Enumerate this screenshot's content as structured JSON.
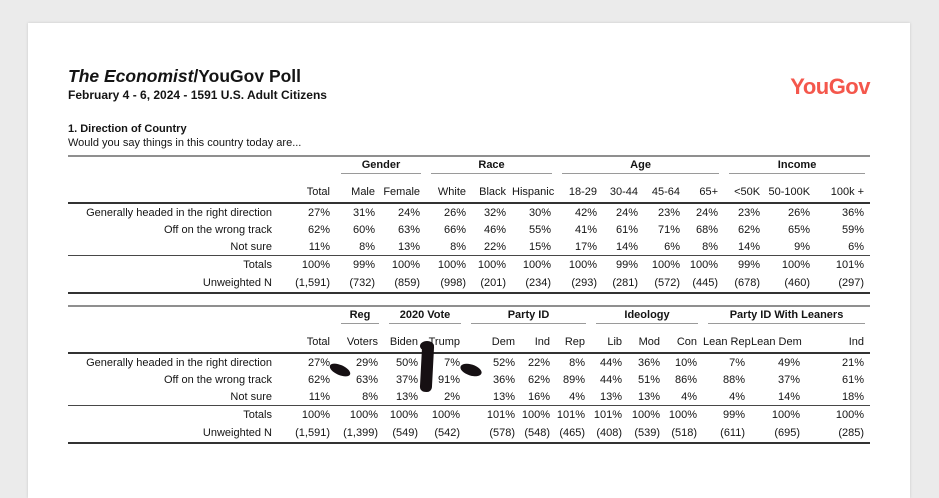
{
  "header": {
    "title_italic": "The Economist",
    "title_rest": "/YouGov Poll",
    "subtitle": "February 4 - 6, 2024 - 1591 U.S. Adult Citizens",
    "logo_text": "YouGov",
    "brand_color": "#f4574c"
  },
  "question": {
    "title": "1. Direction of Country",
    "prompt": "Would you say things in this country today are..."
  },
  "table1": {
    "group_header": [
      {
        "label": "",
        "span": 2
      },
      {
        "label": "Gender",
        "span": 2
      },
      {
        "label": "Race",
        "span": 3
      },
      {
        "label": "Age",
        "span": 4
      },
      {
        "label": "Income",
        "span": 3
      }
    ],
    "columns": [
      "Total",
      "Male",
      "Female",
      "White",
      "Black",
      "Hispanic",
      "18-29",
      "30-44",
      "45-64",
      "65+",
      "<50K",
      "50-100K",
      "100k +"
    ],
    "rows": [
      {
        "label": "Generally headed in the right direction",
        "values": [
          "27%",
          "31%",
          "24%",
          "26%",
          "32%",
          "30%",
          "42%",
          "24%",
          "23%",
          "24%",
          "23%",
          "26%",
          "36%"
        ]
      },
      {
        "label": "Off on the wrong track",
        "values": [
          "62%",
          "60%",
          "63%",
          "66%",
          "46%",
          "55%",
          "41%",
          "61%",
          "71%",
          "68%",
          "62%",
          "65%",
          "59%"
        ]
      },
      {
        "label": "Not sure",
        "values": [
          "11%",
          "8%",
          "13%",
          "8%",
          "22%",
          "15%",
          "17%",
          "14%",
          "6%",
          "8%",
          "14%",
          "9%",
          "6%"
        ]
      }
    ],
    "summary_rows": [
      {
        "label": "Totals",
        "values": [
          "100%",
          "99%",
          "100%",
          "100%",
          "100%",
          "100%",
          "100%",
          "99%",
          "100%",
          "100%",
          "99%",
          "100%",
          "101%"
        ]
      },
      {
        "label": "Unweighted N",
        "values": [
          "(1,591)",
          "(732)",
          "(859)",
          "(998)",
          "(201)",
          "(234)",
          "(293)",
          "(281)",
          "(572)",
          "(445)",
          "(678)",
          "(460)",
          "(297)"
        ]
      }
    ]
  },
  "table2": {
    "group_header": [
      {
        "label": "",
        "span": 2
      },
      {
        "label": "Reg",
        "span": 1
      },
      {
        "label": "2020 Vote",
        "span": 2
      },
      {
        "label": "Party ID",
        "span": 3
      },
      {
        "label": "Ideology",
        "span": 3
      },
      {
        "label": "Party ID With Leaners",
        "span": 3
      }
    ],
    "columns": [
      "Total",
      "Voters",
      "Biden",
      "Trump",
      "Dem",
      "Ind",
      "Rep",
      "Lib",
      "Mod",
      "Con",
      "Lean Rep",
      "Lean Dem",
      "Ind"
    ],
    "rows": [
      {
        "label": "Generally headed in the right direction",
        "values": [
          "27%",
          "29%",
          "50%",
          "7%",
          "52%",
          "22%",
          "8%",
          "44%",
          "36%",
          "10%",
          "7%",
          "49%",
          "21%"
        ]
      },
      {
        "label": "Off on the wrong track",
        "values": [
          "62%",
          "63%",
          "37%",
          "91%",
          "36%",
          "62%",
          "89%",
          "44%",
          "51%",
          "86%",
          "88%",
          "37%",
          "61%"
        ]
      },
      {
        "label": "Not sure",
        "values": [
          "11%",
          "8%",
          "13%",
          "2%",
          "13%",
          "16%",
          "4%",
          "13%",
          "13%",
          "4%",
          "4%",
          "14%",
          "18%"
        ]
      }
    ],
    "summary_rows": [
      {
        "label": "Totals",
        "values": [
          "100%",
          "100%",
          "100%",
          "100%",
          "101%",
          "100%",
          "101%",
          "101%",
          "100%",
          "100%",
          "99%",
          "100%",
          "100%"
        ]
      },
      {
        "label": "Unweighted N",
        "values": [
          "(1,591)",
          "(1,399)",
          "(549)",
          "(542)",
          "(578)",
          "(548)",
          "(465)",
          "(408)",
          "(539)",
          "(518)",
          "(611)",
          "(695)",
          "(285)"
        ]
      }
    ]
  }
}
